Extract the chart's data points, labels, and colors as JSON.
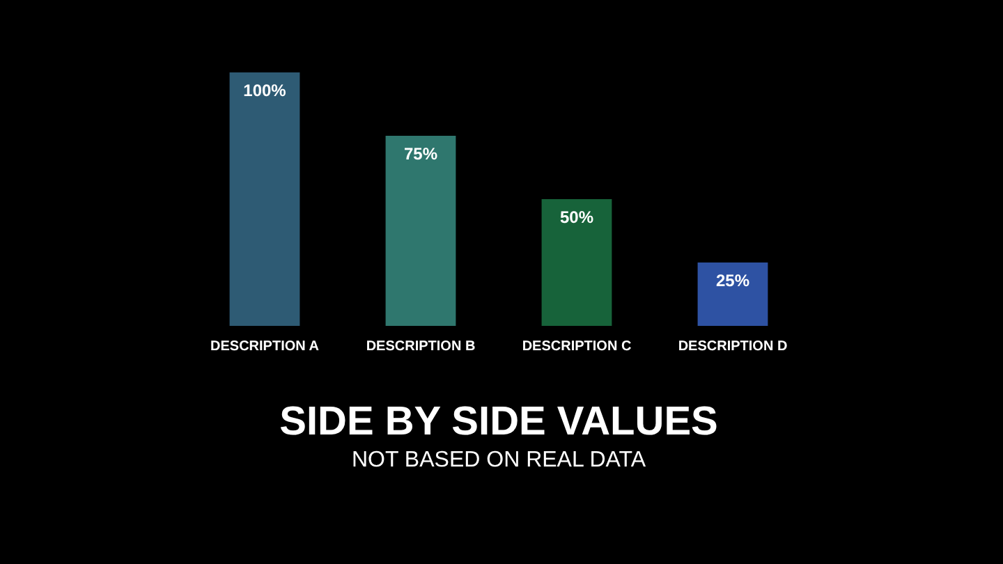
{
  "chart_data": {
    "type": "bar",
    "title": "SIDE BY SIDE VALUES",
    "subtitle": "NOT BASED ON REAL DATA",
    "categories": [
      "DESCRIPTION A",
      "DESCRIPTION B",
      "DESCRIPTION C",
      "DESCRIPTION D"
    ],
    "values": [
      100,
      75,
      50,
      25
    ],
    "colors": [
      "#2e5b74",
      "#2f776e",
      "#17633a",
      "#2e52a3"
    ],
    "value_labels": [
      "100%",
      "75%",
      "50%",
      "25%"
    ]
  }
}
